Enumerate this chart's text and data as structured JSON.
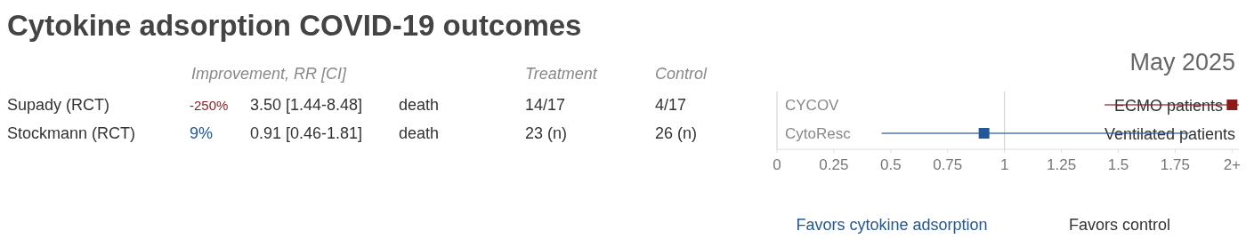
{
  "chart_data": {
    "type": "scatter",
    "orientation": "horizontal",
    "title": "Cytokine adsorption COVID-19 outcomes",
    "categories": [
      "CYCOV",
      "CytoResc"
    ],
    "values": [
      2,
      0.91
    ],
    "errors": [
      [
        1.44,
        2.03
      ],
      [
        0.46,
        1.81
      ]
    ],
    "colors": [
      "#8b1a1a",
      "#22579a"
    ],
    "marker": "square",
    "grid": false,
    "legend": false,
    "xlim": [
      0,
      2.03
    ],
    "xticks": [
      0,
      0.25,
      0.5,
      0.75,
      1,
      1.25,
      1.5,
      1.75,
      {
        "value": 2,
        "label": "2+"
      }
    ],
    "ref_lines": [
      {
        "axis": "x",
        "value": 1,
        "color": "#cccccc"
      }
    ],
    "annotations": [
      "Improvement, RR [CI]",
      "Treatment",
      "Control",
      "Supady (RCT)",
      "-250%",
      "3.50 [1.44-8.48]",
      "death",
      "14/17",
      "4/17",
      "Stockmann (RCT)",
      "9%",
      "0.91 [0.46-1.81]",
      "death",
      "23 (n)",
      "26 (n)",
      "ECMO patients",
      "Ventilated patients",
      "Favors cytokine adsorption",
      "Favors control",
      "May 2025"
    ]
  }
}
